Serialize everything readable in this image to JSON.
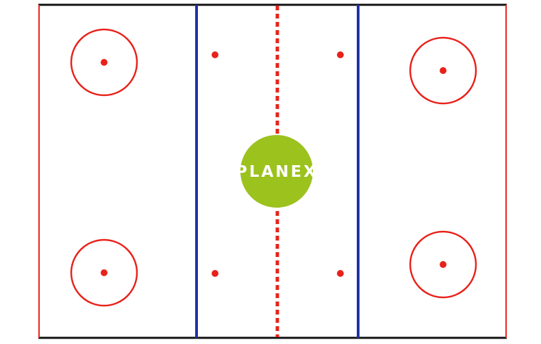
{
  "rink": {
    "logo": {
      "text": "PLANEX",
      "badge_color": "#9CC21E",
      "text_color": "#FFFFFF"
    },
    "colors": {
      "ice": "#FFFFFF",
      "boards": "#111111",
      "goal_line": "#E8221B",
      "blue_line": "#1F2FA8",
      "center_line": "#E8221B",
      "faceoff_circle": "#E8221B",
      "faceoff_dot": "#E8221B"
    },
    "elements": {
      "faceoff_circles": 4,
      "neutral_zone_dots": 4,
      "blue_lines": 2,
      "center_line_style": "dashed"
    }
  }
}
